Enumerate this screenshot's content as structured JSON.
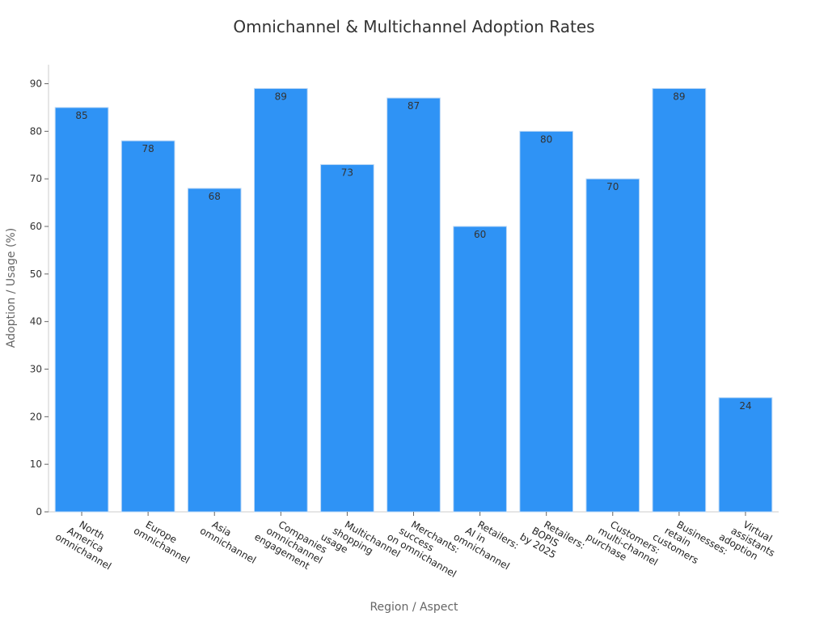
{
  "chart_data": {
    "type": "bar",
    "title": "Omnichannel & Multichannel Adoption Rates",
    "xlabel": "Region / Aspect",
    "ylabel": "Adoption / Usage (%)",
    "ylim": [
      0,
      94
    ],
    "yticks": [
      0,
      10,
      20,
      30,
      40,
      50,
      60,
      70,
      80,
      90
    ],
    "grid": false,
    "bar_color": "#2f93f5",
    "categories": [
      [
        "North",
        "America",
        "omnichannel"
      ],
      [
        "Europe",
        "omnichannel"
      ],
      [
        "Asia",
        "omnichannel"
      ],
      [
        "Companies",
        "omnichannel",
        "engagement"
      ],
      [
        "Multichannel",
        "shopping",
        "usage"
      ],
      [
        "Merchants:",
        "success",
        "on omnichannel"
      ],
      [
        "Retailers:",
        "AI in",
        "omnichannel"
      ],
      [
        "Retailers:",
        "BOPIS",
        "by 2025"
      ],
      [
        "Customers:",
        "multi-channel",
        "purchase"
      ],
      [
        "Businesses:",
        "retain",
        "customers"
      ],
      [
        "Virtual",
        "assistants",
        "adoption"
      ]
    ],
    "values": [
      85,
      78,
      68,
      89,
      73,
      87,
      60,
      80,
      70,
      89,
      24
    ]
  }
}
